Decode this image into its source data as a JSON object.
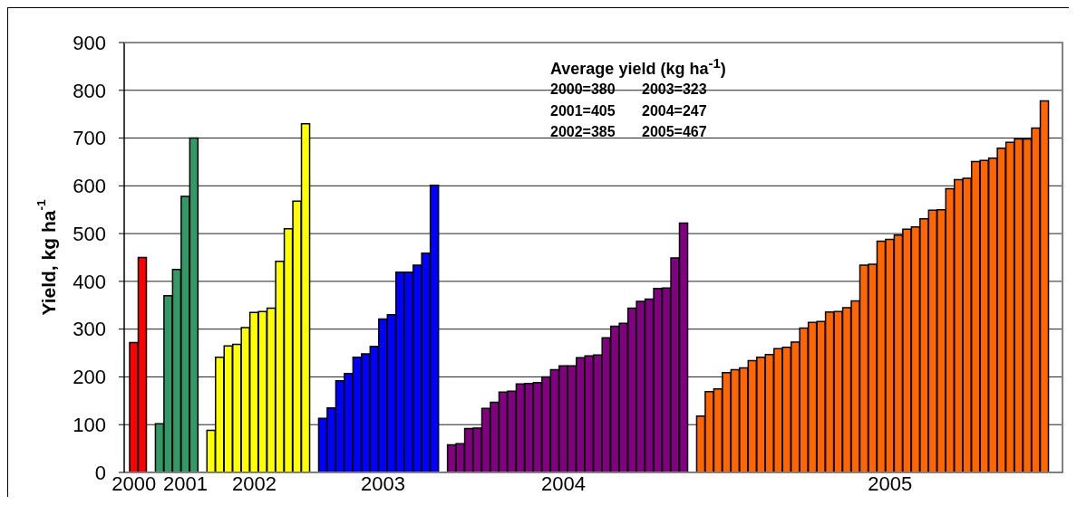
{
  "chart_data": {
    "type": "bar",
    "ylabel": "Yield, kg ha$^{-1}$",
    "categories": [
      "2000",
      null,
      null,
      null,
      null,
      null,
      "2001",
      null,
      null,
      null,
      null,
      null,
      null,
      null,
      "2002",
      null,
      null,
      null,
      null,
      null,
      null,
      null,
      null,
      null,
      null,
      null,
      null,
      null,
      null,
      "2003",
      null,
      null,
      null,
      null,
      null,
      null,
      null,
      null,
      null,
      null,
      null,
      null,
      null,
      null,
      null,
      null,
      null,
      null,
      null,
      null,
      "2004",
      null,
      null,
      null,
      null,
      null,
      null,
      null,
      null,
      null,
      null,
      null,
      null,
      null,
      null,
      null,
      null,
      null,
      null,
      null,
      null,
      null,
      null,
      null,
      null,
      null,
      null,
      null,
      null,
      null,
      null,
      null,
      null,
      null,
      null,
      null,
      null,
      null,
      "2005",
      null,
      null,
      null,
      null,
      null,
      null,
      null,
      null,
      null,
      null,
      null,
      null,
      null,
      null,
      null,
      null,
      null,
      null
    ],
    "values": [
      272,
      450,
      null,
      102,
      370,
      425,
      578,
      700,
      null,
      88,
      241,
      265,
      268,
      303,
      335,
      337,
      344,
      442,
      510,
      568,
      730,
      null,
      113,
      135,
      192,
      207,
      241,
      248,
      264,
      321,
      330,
      419,
      419,
      434,
      459,
      601,
      null,
      58,
      60,
      92,
      93,
      134,
      147,
      168,
      170,
      185,
      186,
      188,
      200,
      215,
      223,
      223,
      240,
      244,
      246,
      282,
      306,
      312,
      344,
      358,
      363,
      385,
      386,
      449,
      522,
      null,
      118,
      169,
      175,
      209,
      215,
      219,
      234,
      241,
      247,
      259,
      262,
      273,
      302,
      314,
      316,
      336,
      337,
      345,
      359,
      434,
      436,
      484,
      488,
      497,
      509,
      514,
      531,
      549,
      550,
      594,
      613,
      616,
      651,
      653,
      658,
      679,
      691,
      698,
      698,
      721,
      778
    ],
    "colors": [
      "#ff0000",
      "#ff0000",
      null,
      "#339966",
      "#339966",
      "#339966",
      "#339966",
      "#339966",
      null,
      "#ffff00",
      "#ffff00",
      "#ffff00",
      "#ffff00",
      "#ffff00",
      "#ffff00",
      "#ffff00",
      "#ffff00",
      "#ffff00",
      "#ffff00",
      "#ffff00",
      "#ffff00",
      null,
      "#0000ff",
      "#0000ff",
      "#0000ff",
      "#0000ff",
      "#0000ff",
      "#0000ff",
      "#0000ff",
      "#0000ff",
      "#0000ff",
      "#0000ff",
      "#0000ff",
      "#0000ff",
      "#0000ff",
      "#0000ff",
      null,
      "#800080",
      "#800080",
      "#800080",
      "#800080",
      "#800080",
      "#800080",
      "#800080",
      "#800080",
      "#800080",
      "#800080",
      "#800080",
      "#800080",
      "#800080",
      "#800080",
      "#800080",
      "#800080",
      "#800080",
      "#800080",
      "#800080",
      "#800080",
      "#800080",
      "#800080",
      "#800080",
      "#800080",
      "#800080",
      "#800080",
      "#800080",
      "#800080",
      null,
      "#ff6600",
      "#ff6600",
      "#ff6600",
      "#ff6600",
      "#ff6600",
      "#ff6600",
      "#ff6600",
      "#ff6600",
      "#ff6600",
      "#ff6600",
      "#ff6600",
      "#ff6600",
      "#ff6600",
      "#ff6600",
      "#ff6600",
      "#ff6600",
      "#ff6600",
      "#ff6600",
      "#ff6600",
      "#ff6600",
      "#ff6600",
      "#ff6600",
      "#ff6600",
      "#ff6600",
      "#ff6600",
      "#ff6600",
      "#ff6600",
      "#ff6600",
      "#ff6600",
      "#ff6600",
      "#ff6600",
      "#ff6600",
      "#ff6600",
      "#ff6600",
      "#ff6600",
      "#ff6600",
      "#ff6600",
      "#ff6600",
      "#ff6600",
      "#ff6600",
      "#ff6600"
    ],
    "ylim": [
      0,
      900
    ],
    "yticks": [
      0,
      100,
      200,
      300,
      400,
      500,
      600,
      700,
      800,
      900
    ],
    "grid": "y",
    "annotations": [
      "Average yield (kg ha$^{-1}$)",
      "2000=380",
      "2003=323",
      "2001=405",
      "2004=247",
      "2002=385",
      "2005=467"
    ]
  }
}
